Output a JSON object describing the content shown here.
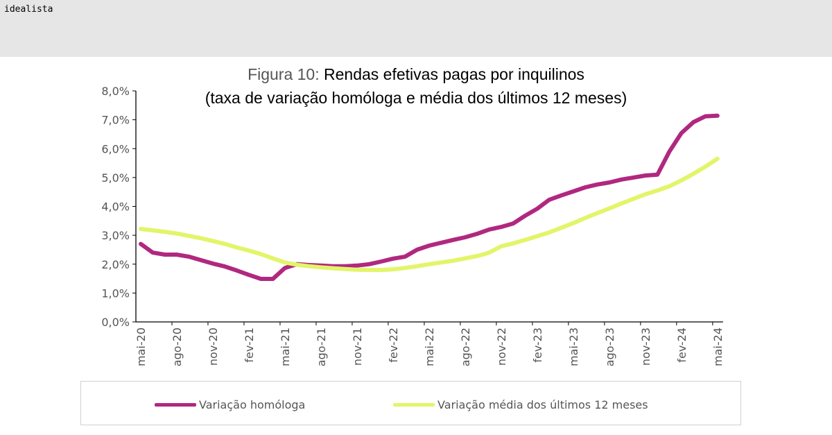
{
  "header": {
    "brand": "idealista"
  },
  "chart_data": {
    "type": "line",
    "title_prefix": "Figura 10:",
    "title": "Rendas efetivas pagas por inquilinos",
    "subtitle": "(taxa de variação homóloga e média dos últimos 12 meses)",
    "ylim": [
      0,
      8
    ],
    "yticks": [
      "0,0%",
      "1,0%",
      "2,0%",
      "3,0%",
      "4,0%",
      "5,0%",
      "6,0%",
      "7,0%",
      "8,0%"
    ],
    "xtick_labels": [
      "mai-20",
      "ago-20",
      "nov-20",
      "fev-21",
      "mai-21",
      "ago-21",
      "nov-21",
      "fev-22",
      "mai-22",
      "ago-22",
      "nov-22",
      "fev-23",
      "mai-23",
      "ago-23",
      "nov-23",
      "fev-24",
      "mai-24"
    ],
    "x_start": "mai-20",
    "x_end": "mai-24",
    "frequency": "monthly",
    "legend_position": "bottom",
    "series": [
      {
        "name": "Variação homóloga",
        "color": "#b0287f",
        "values": [
          2.7,
          2.4,
          2.33,
          2.33,
          2.26,
          2.14,
          2.02,
          1.92,
          1.78,
          1.63,
          1.49,
          1.49,
          1.87,
          2.0,
          1.97,
          1.95,
          1.93,
          1.93,
          1.95,
          2.0,
          2.09,
          2.19,
          2.26,
          2.5,
          2.64,
          2.74,
          2.84,
          2.93,
          3.05,
          3.2,
          3.29,
          3.41,
          3.68,
          3.92,
          4.23,
          4.38,
          4.52,
          4.66,
          4.76,
          4.83,
          4.93,
          5.0,
          5.07,
          5.1,
          5.9,
          6.54,
          6.92,
          7.12,
          7.14
        ]
      },
      {
        "name": "Variação média dos últimos 12 meses",
        "color": "#e2f56a",
        "values": [
          3.22,
          3.17,
          3.12,
          3.06,
          2.98,
          2.9,
          2.8,
          2.7,
          2.58,
          2.47,
          2.35,
          2.2,
          2.06,
          1.98,
          1.93,
          1.89,
          1.86,
          1.83,
          1.81,
          1.8,
          1.8,
          1.82,
          1.87,
          1.93,
          2.0,
          2.06,
          2.12,
          2.2,
          2.28,
          2.4,
          2.62,
          2.72,
          2.84,
          2.97,
          3.1,
          3.26,
          3.42,
          3.6,
          3.77,
          3.93,
          4.1,
          4.26,
          4.42,
          4.55,
          4.7,
          4.9,
          5.13,
          5.38,
          5.65
        ]
      }
    ]
  }
}
